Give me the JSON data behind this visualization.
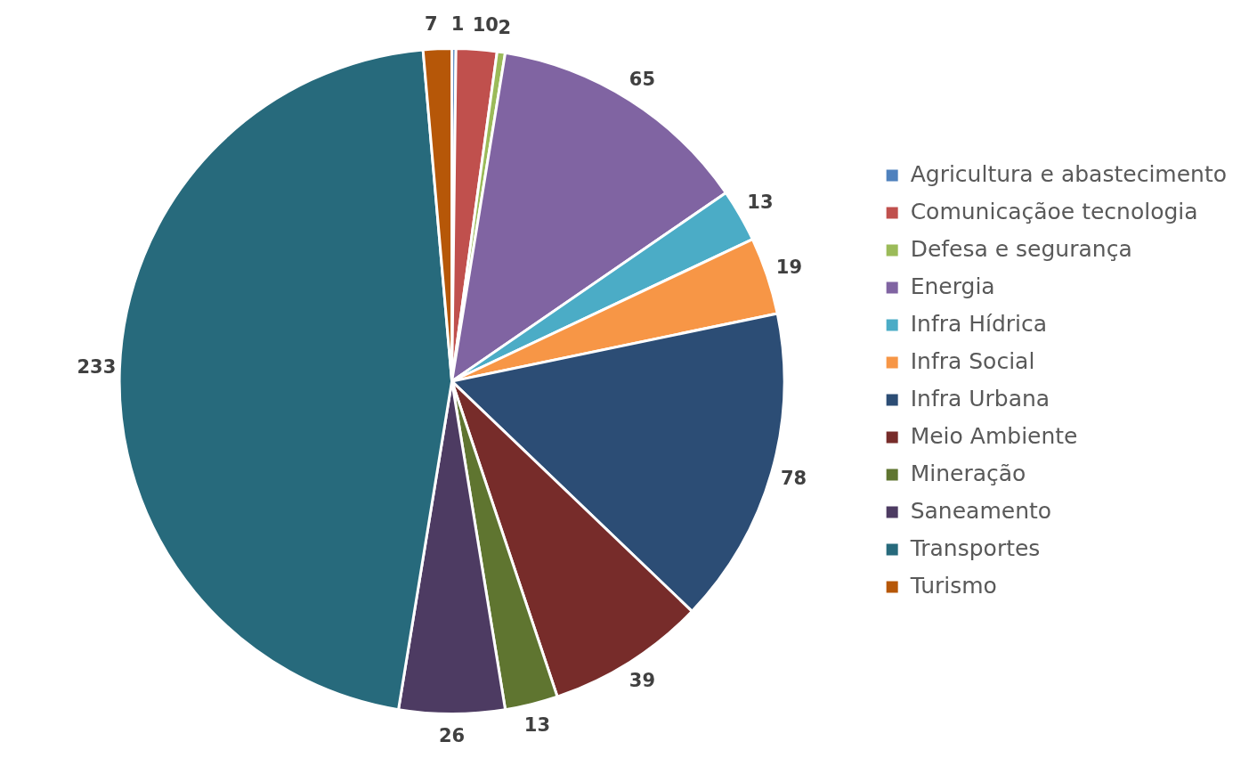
{
  "chart_data": {
    "type": "pie",
    "categories": [
      "Agricultura e abastecimento",
      "Comunicaçãoe tecnologia",
      "Defesa e segurança",
      "Energia",
      "Infra Hídrica",
      "Infra Social",
      "Infra Urbana",
      "Meio Ambiente",
      "Mineração",
      "Saneamento",
      "Transportes",
      "Turismo"
    ],
    "values": [
      1,
      10,
      2,
      65,
      13,
      19,
      78,
      39,
      13,
      26,
      233,
      7
    ],
    "colors": [
      "#4f81bd",
      "#c0504d",
      "#9bbb59",
      "#8064a2",
      "#4bacc6",
      "#f79646",
      "#2c4d75",
      "#772c2a",
      "#5f7530",
      "#4d3b62",
      "#276a7c",
      "#b65708"
    ],
    "data_labels": true,
    "legend": "right"
  }
}
